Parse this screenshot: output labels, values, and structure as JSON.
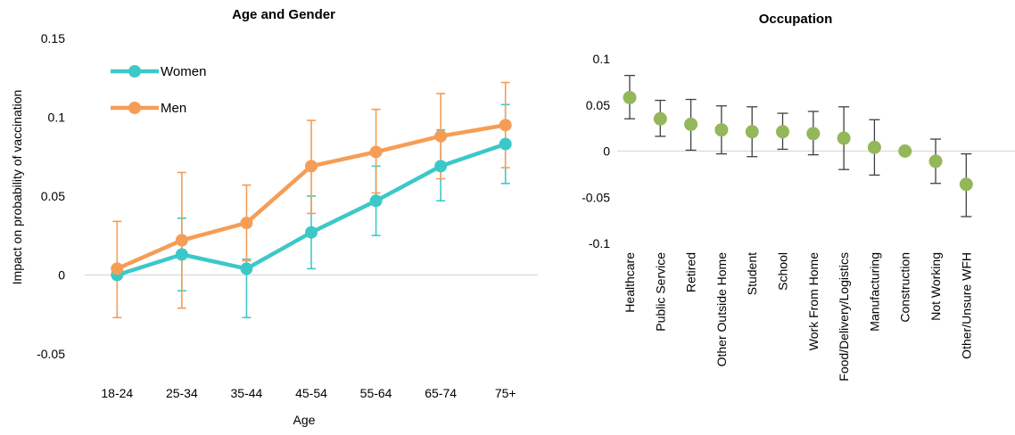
{
  "chart_data": [
    {
      "type": "line",
      "title": "Age and Gender",
      "xlabel": "Age",
      "ylabel": "Impact on probability of vaccination",
      "ylim": [
        -0.05,
        0.15
      ],
      "yticks": [
        -0.05,
        0,
        0.05,
        0.1,
        0.15
      ],
      "ytick_labels": [
        "-0.05",
        "0",
        "0.05",
        "0.1",
        "0.15"
      ],
      "categories": [
        "18-24",
        "25-34",
        "35-44",
        "45-54",
        "55-64",
        "65-74",
        "75+"
      ],
      "legend_position": "top-left",
      "series": [
        {
          "name": "Women",
          "color": "#3CC8C8",
          "values": [
            0.0,
            0.013,
            0.004,
            0.027,
            0.047,
            0.069,
            0.083
          ],
          "err_low": [
            0.0,
            -0.01,
            -0.027,
            0.004,
            0.025,
            0.047,
            0.058
          ],
          "err_high": [
            0.0,
            0.036,
            0.01,
            0.05,
            0.069,
            0.092,
            0.108
          ]
        },
        {
          "name": "Men",
          "color": "#F59D56",
          "values": [
            0.004,
            0.022,
            0.033,
            0.069,
            0.078,
            0.088,
            0.095
          ],
          "err_low": [
            -0.027,
            -0.021,
            0.009,
            0.039,
            0.052,
            0.061,
            0.068
          ],
          "err_high": [
            0.034,
            0.065,
            0.057,
            0.098,
            0.105,
            0.115,
            0.122
          ]
        }
      ]
    },
    {
      "type": "scatter",
      "title": "Occupation",
      "ylim": [
        -0.1,
        0.1
      ],
      "yticks": [
        -0.1,
        -0.05,
        0,
        0.05,
        0.1
      ],
      "ytick_labels": [
        "-0.1",
        "-0.05",
        "0",
        "0.05",
        "0.1"
      ],
      "categories": [
        "Healthcare",
        "Public Service",
        "Retired",
        "Other Outside Home",
        "Student",
        "School",
        "Work From Home",
        "Food/Delivery/Logistics",
        "Manufacturing",
        "Construction",
        "Not Working",
        "Other/Unsure WFH"
      ],
      "marker_color": "#93B75A",
      "errorbar_color": "#404040",
      "values": [
        0.058,
        0.035,
        0.029,
        0.023,
        0.021,
        0.021,
        0.019,
        0.014,
        0.004,
        0.0,
        -0.011,
        -0.036
      ],
      "err_low": [
        0.035,
        0.016,
        0.001,
        -0.003,
        -0.006,
        0.002,
        -0.004,
        -0.02,
        -0.026,
        0.0,
        -0.035,
        -0.071
      ],
      "err_high": [
        0.082,
        0.055,
        0.056,
        0.049,
        0.048,
        0.041,
        0.043,
        0.048,
        0.034,
        0.0,
        0.013,
        -0.003
      ]
    }
  ]
}
